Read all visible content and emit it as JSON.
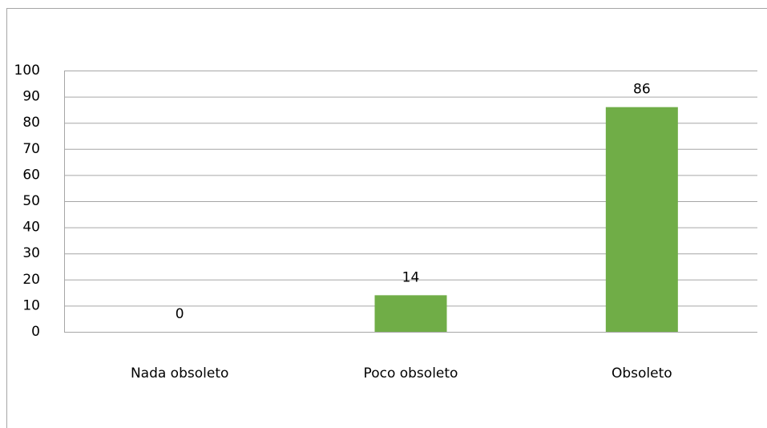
{
  "chart_data": {
    "type": "bar",
    "categories": [
      "Nada obsoleto",
      "Poco obsoleto",
      "Obsoleto"
    ],
    "values": [
      0,
      14,
      86
    ],
    "color": "#70ad47",
    "ylim": [
      0,
      100
    ],
    "yticks": [
      0,
      10,
      20,
      30,
      40,
      50,
      60,
      70,
      80,
      90,
      100
    ],
    "grid": true,
    "data_labels": true
  }
}
